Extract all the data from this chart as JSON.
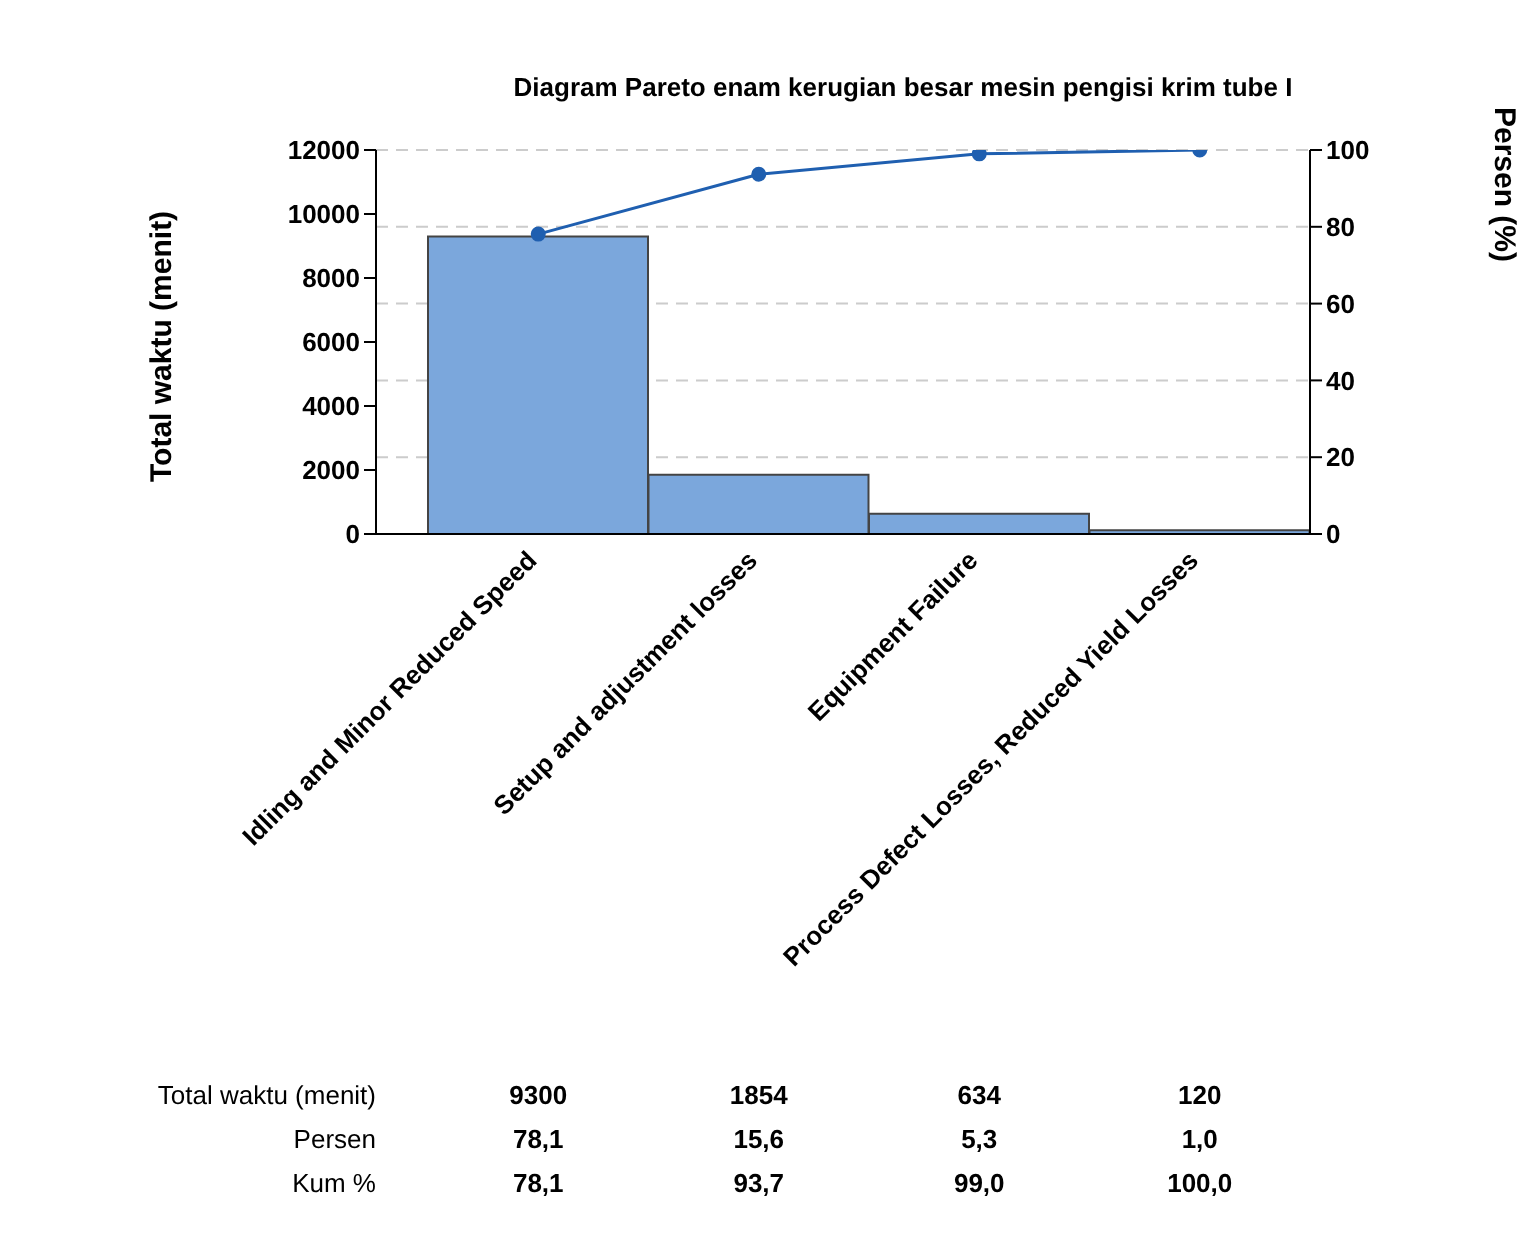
{
  "chart_data": {
    "type": "bar",
    "title": "Diagram Pareto enam kerugian besar mesin pengisi krim tube I",
    "categories": [
      "Idling and Minor Reduced Speed",
      "Setup and adjustment losses",
      "Equipment Failure",
      "Process Defect Losses, Reduced Yield Losses"
    ],
    "series": [
      {
        "color": "#7ba7dc",
        "values": [
          9300,
          1854,
          634,
          120
        ],
        "value_labels": [
          "9300",
          "1854",
          "634",
          "120"
        ]
      },
      {
        "type": "line",
        "axis": "y2",
        "color": "#1f5fb0",
        "values": [
          78.1,
          93.7,
          99.0,
          100.0
        ],
        "value_labels": [
          "78,1",
          "93,7",
          "99,0",
          "100,0"
        ]
      }
    ],
    "ylabel": "Total waktu (menit)",
    "y2label": "Persen (%)",
    "ylim": [
      0,
      12000
    ],
    "yticks": [
      0,
      2000,
      4000,
      6000,
      8000,
      10000,
      12000
    ],
    "y2lim": [
      0,
      100
    ],
    "y2ticks": [
      0,
      20,
      40,
      60,
      80,
      100
    ],
    "grid": "y",
    "marker": "circle",
    "line_style": "solid",
    "annotations": [
      "Total waktu (menit)",
      "Persen",
      "Kum %",
      "78,1",
      "15,6",
      "5,3",
      "1,0"
    ]
  }
}
